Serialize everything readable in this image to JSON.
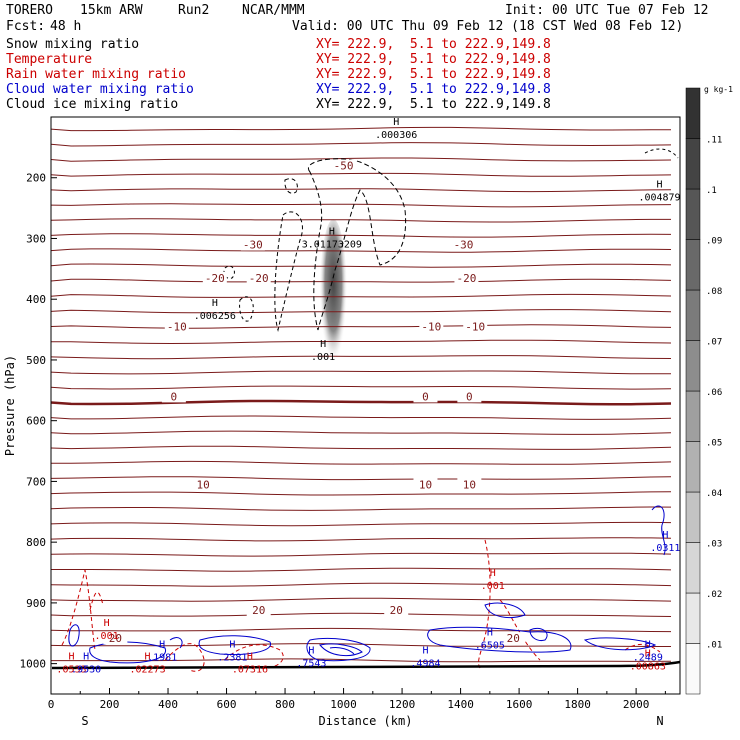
{
  "header": {
    "model": "TORERO",
    "resolution": "15km ARW",
    "run": "Run2",
    "org": "NCAR/MMM",
    "init": "Init: 00 UTC Tue 07 Feb 12",
    "fcst_label": "Fcst:",
    "fcst_value": "48 h",
    "valid": "Valid: 00 UTC Thu 09 Feb 12 (18 CST Wed 08 Feb 12)"
  },
  "fields": [
    {
      "name": "Snow mixing ratio",
      "color": "#000000",
      "xy": "XY= 222.9,  5.1 to 222.9,149.8"
    },
    {
      "name": "Temperature",
      "color": "#cc0000",
      "xy": "XY= 222.9,  5.1 to 222.9,149.8"
    },
    {
      "name": "Rain water mixing ratio",
      "color": "#cc0000",
      "xy": "XY= 222.9,  5.1 to 222.9,149.8"
    },
    {
      "name": "Cloud water mixing ratio",
      "color": "#0000cc",
      "xy": "XY= 222.9,  5.1 to 222.9,149.8"
    },
    {
      "name": "Cloud ice mixing ratio",
      "color": "#000000",
      "xy": "XY= 222.9,  5.1 to 222.9,149.8"
    }
  ],
  "chart_data": {
    "type": "cross-section",
    "xlabel": "Distance (km)",
    "ylabel": "Pressure (hPa)",
    "xlim": [
      0,
      2150
    ],
    "ylim": [
      1050,
      100
    ],
    "x_ticks": [
      "0",
      "200",
      "400",
      "600",
      "800",
      "1000",
      "1200",
      "1400",
      "1600",
      "1800",
      "2000"
    ],
    "y_ticks": [
      "200",
      "300",
      "400",
      "500",
      "600",
      "700",
      "800",
      "900",
      "1000"
    ],
    "endpoints": {
      "left": "S",
      "right": "N"
    },
    "colorbar": {
      "units": "g kg-1",
      "labels": [
        ".01",
        ".02",
        ".03",
        ".04",
        ".05",
        ".06",
        ".07",
        ".08",
        ".09",
        ".1",
        ".11"
      ]
    },
    "temperature_contours": [
      {
        "label": "-50",
        "p": 180,
        "x": 1000
      },
      {
        "label": "-30",
        "p": 310,
        "x": 690
      },
      {
        "label": "-30",
        "p": 310,
        "x": 1410
      },
      {
        "label": "-20",
        "p": 365,
        "x": 560
      },
      {
        "label": "-20",
        "p": 365,
        "x": 710
      },
      {
        "label": "-20",
        "p": 365,
        "x": 1420
      },
      {
        "label": "-10",
        "p": 445,
        "x": 430
      },
      {
        "label": "-10",
        "p": 445,
        "x": 1300
      },
      {
        "label": "-10",
        "p": 445,
        "x": 1450
      },
      {
        "label": "0",
        "p": 560,
        "x": 420
      },
      {
        "label": "0",
        "p": 560,
        "x": 1280
      },
      {
        "label": "0",
        "p": 560,
        "x": 1430
      },
      {
        "label": "10",
        "p": 705,
        "x": 520
      },
      {
        "label": "10",
        "p": 705,
        "x": 1280
      },
      {
        "label": "10",
        "p": 705,
        "x": 1430
      },
      {
        "label": "20",
        "p": 912,
        "x": 710
      },
      {
        "label": "20",
        "p": 912,
        "x": 1180
      },
      {
        "label": "20",
        "p": 958,
        "x": 220
      },
      {
        "label": "20",
        "p": 958,
        "x": 1580
      }
    ],
    "maxima_labels": [
      {
        "text": ".000306",
        "color": "#000000",
        "x": 1180,
        "p": 120
      },
      {
        "text": ".004879",
        "color": "#000000",
        "x": 2080,
        "p": 223
      },
      {
        "text": "3.01173209",
        "color": "#000000",
        "x": 960,
        "p": 300
      },
      {
        "text": ".006256",
        "color": "#000000",
        "x": 560,
        "p": 418
      },
      {
        "text": ".001",
        "color": "#000000",
        "x": 930,
        "p": 485
      },
      {
        "text": ".0311",
        "color": "#0000cc",
        "x": 2100,
        "p": 800
      },
      {
        "text": ".001",
        "color": "#cc0000",
        "x": 1510,
        "p": 862
      },
      {
        "text": ".001",
        "color": "#cc0000",
        "x": 190,
        "p": 945
      },
      {
        "text": ".02273",
        "color": "#cc0000",
        "x": 330,
        "p": 1000
      },
      {
        "text": ".0533",
        "color": "#cc0000",
        "x": 70,
        "p": 1000
      },
      {
        "text": ".9530",
        "color": "#0000cc",
        "x": 120,
        "p": 1000
      },
      {
        "text": ".1981",
        "color": "#0000cc",
        "x": 380,
        "p": 980
      },
      {
        "text": ".2381",
        "color": "#0000cc",
        "x": 620,
        "p": 980
      },
      {
        "text": ".07316",
        "color": "#cc0000",
        "x": 680,
        "p": 1000
      },
      {
        "text": ".7543",
        "color": "#0000cc",
        "x": 890,
        "p": 990
      },
      {
        "text": ".4984",
        "color": "#0000cc",
        "x": 1280,
        "p": 990
      },
      {
        "text": ".6505",
        "color": "#0000cc",
        "x": 1500,
        "p": 960
      },
      {
        "text": ".2489",
        "color": "#0000cc",
        "x": 2040,
        "p": 980
      },
      {
        "text": ".00863",
        "color": "#cc0000",
        "x": 2040,
        "p": 995
      }
    ]
  }
}
